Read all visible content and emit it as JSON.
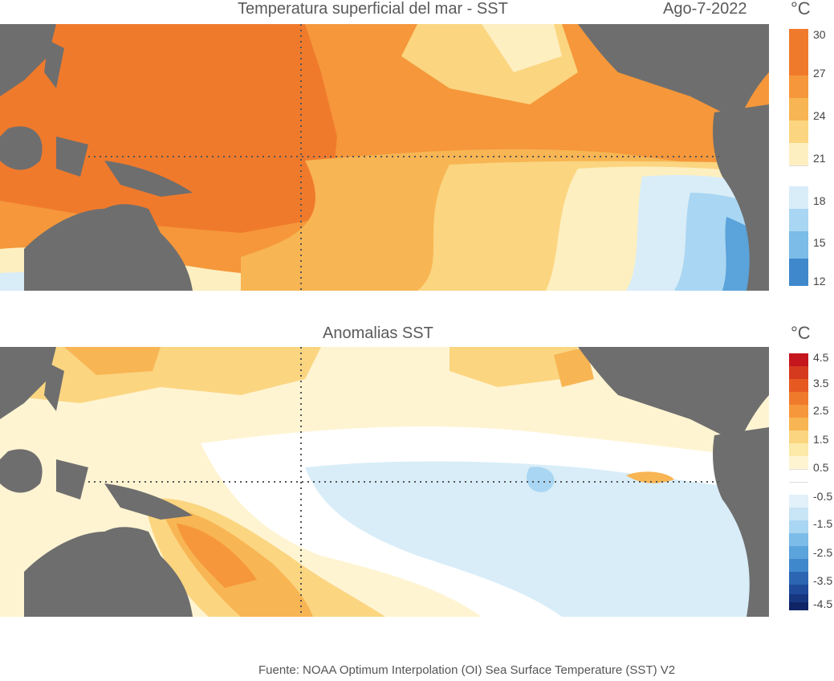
{
  "top_panel": {
    "title": "Temperatura superficial del mar - SST",
    "date": "Ago-7-2022",
    "unit": "°C",
    "colorbar": {
      "labels": [
        "30",
        "27",
        "24",
        "21",
        "18",
        "15",
        "12"
      ],
      "colors": [
        "#f07a2c",
        "#f5973a",
        "#f8b553",
        "#fbd580",
        "#fdefc0",
        "#ffffff",
        "#d8edf8",
        "#a9d6f2",
        "#7bbce8",
        "#5aa3db",
        "#3f88cc"
      ]
    },
    "colors": {
      "land": "#6e6e6e",
      "warm_pool": "#f07a2c",
      "warm": "#f5973a",
      "mild": "#f8b553",
      "cool_yellow": "#fbd580",
      "pale": "#fdefc0",
      "light_blue": "#d8edf8",
      "blue": "#a9d6f2",
      "deep_blue": "#5aa3db"
    }
  },
  "bottom_panel": {
    "title": "Anomalias SST",
    "unit": "°C",
    "colorbar": {
      "labels": [
        "4.5",
        "3.5",
        "2.5",
        "1.5",
        "0.5",
        "-0.5",
        "-1.5",
        "-2.5",
        "-3.5",
        "-4.5"
      ],
      "colors": [
        "#c4161c",
        "#d63a1e",
        "#e65a22",
        "#f07a2c",
        "#f5973a",
        "#f8b553",
        "#fbd580",
        "#fde9a8",
        "#fff4d2",
        "#ffffff",
        "#ffffff",
        "#e2f1fa",
        "#c8e5f6",
        "#a9d6f2",
        "#7bbce8",
        "#5aa3db",
        "#3f88cc",
        "#2c66b3",
        "#1f4a99",
        "#163680",
        "#0f2566"
      ]
    },
    "colors": {
      "land": "#6e6e6e",
      "warm_anom": "#f5973a",
      "mild_anom": "#fbd580",
      "pale_anom": "#fff4d2",
      "neutral": "#ffffff",
      "cool_anom": "#d8edf8"
    }
  },
  "footer": "Fuente: NOAA Optimum Interpolation (OI) Sea Surface Temperature (SST) V2"
}
